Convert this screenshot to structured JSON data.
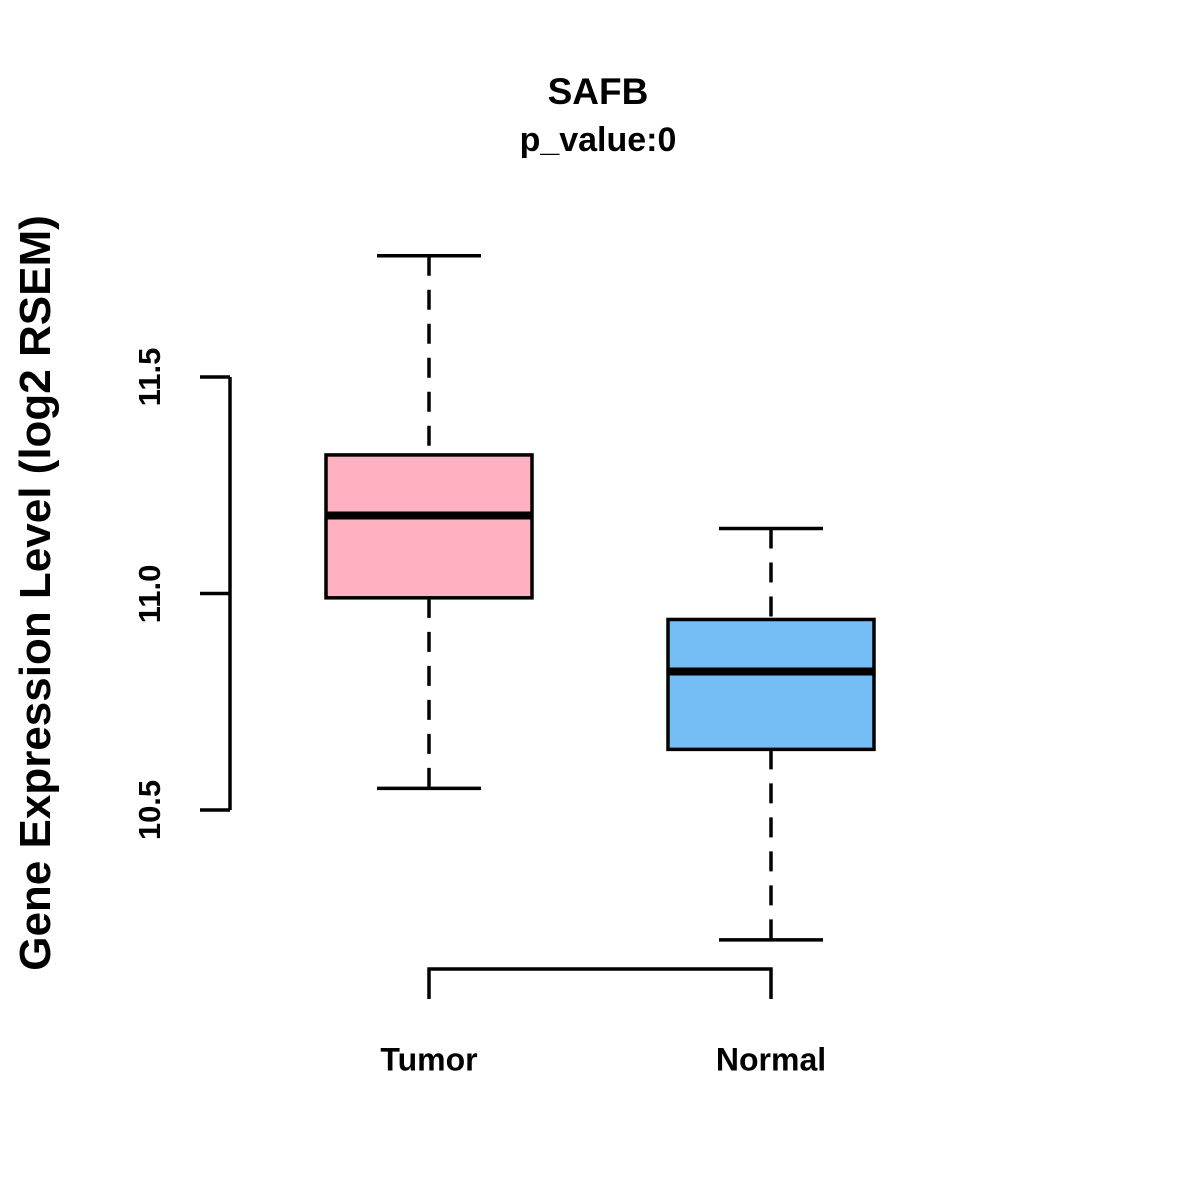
{
  "page": {
    "background": "#FFFFFF",
    "text_color": "#000000"
  },
  "chart_data": {
    "type": "boxplot",
    "title": "SAFB",
    "subtitle": "p_value:0",
    "ylabel": "Gene Expression Level (log2 RSEM)",
    "xlabel": "",
    "categories": [
      "Tumor",
      "Normal"
    ],
    "y_ticks": [
      11.5,
      11.0,
      10.5
    ],
    "ylim": [
      10.5,
      11.5
    ],
    "grid": false,
    "legend": false,
    "axis_color": "#000000",
    "whisker_style": "dashed",
    "series": [
      {
        "name": "Tumor",
        "color": "#FFB1C1",
        "upper_whisker": 11.78,
        "q3": 11.32,
        "median": 11.18,
        "q1": 10.99,
        "lower_whisker": 10.55
      },
      {
        "name": "Normal",
        "color": "#75BEF5",
        "upper_whisker": 11.15,
        "q3": 10.94,
        "median": 10.82,
        "q1": 10.64,
        "lower_whisker": 10.2
      }
    ]
  }
}
